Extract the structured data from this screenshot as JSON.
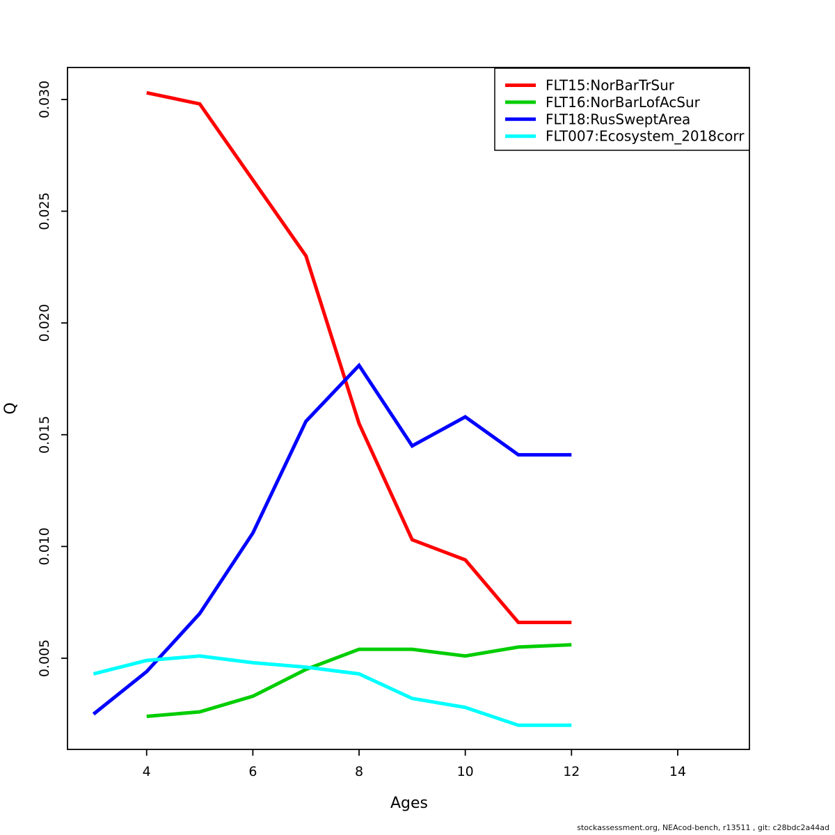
{
  "page": {
    "background": "#ffffff"
  },
  "footer": {
    "credit": "stockassessment.org, NEAcod-bench, r13511 , git: c28bdc2a44ad"
  },
  "chart_data": {
    "type": "line",
    "title": "",
    "xlabel": "Ages",
    "ylabel": "Q",
    "xlim": [
      2.51,
      15.35
    ],
    "ylim": [
      0.00092,
      0.03143
    ],
    "x_ticks": [
      4,
      6,
      8,
      10,
      12,
      14
    ],
    "x_tick_labels": [
      "4",
      "6",
      "8",
      "10",
      "12",
      "14"
    ],
    "y_ticks": [
      0.005,
      0.01,
      0.015,
      0.02,
      0.025,
      0.03
    ],
    "y_tick_labels": [
      "0.005",
      "0.010",
      "0.015",
      "0.020",
      "0.025",
      "0.030"
    ],
    "grid": false,
    "legend_position": "top-right",
    "axis_color": "#000000",
    "series": [
      {
        "name": "FLT15:NorBarTrSur",
        "color": "#FF0000",
        "x": [
          4,
          5,
          6,
          7,
          8,
          9,
          10,
          11,
          12
        ],
        "y": [
          0.0303,
          0.0298,
          0.0264,
          0.023,
          0.0155,
          0.0103,
          0.0094,
          0.0066,
          0.0066
        ]
      },
      {
        "name": "FLT16:NorBarLofAcSur",
        "color": "#00CD00",
        "x": [
          4,
          5,
          6,
          7,
          8,
          9,
          10,
          11,
          12
        ],
        "y": [
          0.0024,
          0.0026,
          0.0033,
          0.0045,
          0.0054,
          0.0054,
          0.0051,
          0.0055,
          0.0056
        ]
      },
      {
        "name": "FLT18:RusSweptArea",
        "color": "#0000FF",
        "x": [
          3,
          4,
          5,
          6,
          7,
          8,
          9,
          10,
          11,
          12
        ],
        "y": [
          0.0025,
          0.0044,
          0.007,
          0.0106,
          0.0156,
          0.0181,
          0.0145,
          0.0158,
          0.0141,
          0.0141
        ]
      },
      {
        "name": "FLT007:Ecosystem_2018corr",
        "color": "#00FFFF",
        "x": [
          3,
          4,
          5,
          6,
          7,
          8,
          9,
          10,
          11,
          12
        ],
        "y": [
          0.0043,
          0.0049,
          0.0051,
          0.0048,
          0.0046,
          0.0043,
          0.0032,
          0.0028,
          0.002,
          0.002
        ]
      }
    ]
  }
}
